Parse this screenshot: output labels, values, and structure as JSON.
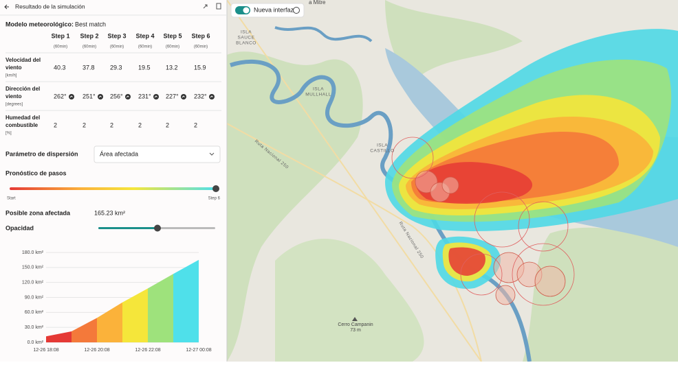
{
  "header": {
    "title": "Resultado de la simulación"
  },
  "toggle": {
    "label": "Nueva interfaz"
  },
  "model": {
    "label": "Modelo meteorológico:",
    "value": "Best match"
  },
  "table": {
    "columns": [
      {
        "step": "Step 1",
        "duration": "(60min)"
      },
      {
        "step": "Step 2",
        "duration": "(60min)"
      },
      {
        "step": "Step 3",
        "duration": "(60min)"
      },
      {
        "step": "Step 4",
        "duration": "(60min)"
      },
      {
        "step": "Step 5",
        "duration": "(60min)"
      },
      {
        "step": "Step 6",
        "duration": "(60min)"
      }
    ],
    "rows": [
      {
        "label": [
          "Velocidad del",
          "viento"
        ],
        "unit": "[km/h]",
        "values": [
          40.3,
          37.8,
          29.3,
          19.5,
          13.2,
          15.9
        ]
      },
      {
        "label": [
          "Dirección del",
          "viento"
        ],
        "unit": "[degrees]",
        "values": [
          "262°",
          "251°",
          "256°",
          "231°",
          "227°",
          "232°"
        ]
      },
      {
        "label": [
          "Humedad del",
          "combustible"
        ],
        "unit": "[%]",
        "values": [
          2,
          2,
          2,
          2,
          2,
          2
        ]
      }
    ]
  },
  "dispersion": {
    "label": "Parámetro de dispersión",
    "value": "Área afectada"
  },
  "steps": {
    "label": "Pronóstico de pasos",
    "start": "Start",
    "end": "Step 6"
  },
  "area": {
    "label": "Posible zona afectada",
    "value": "165.23 km²"
  },
  "opacity": {
    "label": "Opacidad"
  },
  "chart_data": {
    "type": "area",
    "x": [
      "12-26 18:08",
      null,
      "12-26 20:08",
      null,
      "12-26 22:08",
      null,
      "12-27 00:08"
    ],
    "values": [
      12,
      22,
      49,
      80,
      108,
      137,
      165.23
    ],
    "colors": [
      "#e53935",
      "#f4793a",
      "#fbb23a",
      "#f5e63a",
      "#9ee27c",
      "#4fe0ea"
    ],
    "ylim": [
      0,
      180
    ],
    "yticks": [
      {
        "value": 0,
        "label": "0.0 km²"
      },
      {
        "value": 30,
        "label": "30.0 km²"
      },
      {
        "value": 60,
        "label": "60.0 km²"
      },
      {
        "value": 90,
        "label": "90.0 km²"
      },
      {
        "value": 120,
        "label": "120.0 km²"
      },
      {
        "value": 150,
        "label": "150.0 km²"
      },
      {
        "value": 180,
        "label": "180.0 km²"
      }
    ],
    "grid": true
  },
  "map": {
    "labels": [
      {
        "lines": [
          "a Mitre"
        ]
      },
      {
        "lines": [
          "ISLA",
          "SAUCE",
          "BLANCO"
        ]
      },
      {
        "lines": [
          "ISLA",
          "MULLHALL"
        ]
      },
      {
        "lines": [
          "ISLA",
          "CASTILLO"
        ]
      },
      {
        "lines": [
          "Ruta Nacional 250"
        ]
      },
      {
        "lines": [
          "Ruta Nacional 250"
        ]
      },
      {
        "lines": [
          "Cerro Campanin",
          "73 m"
        ]
      }
    ]
  }
}
